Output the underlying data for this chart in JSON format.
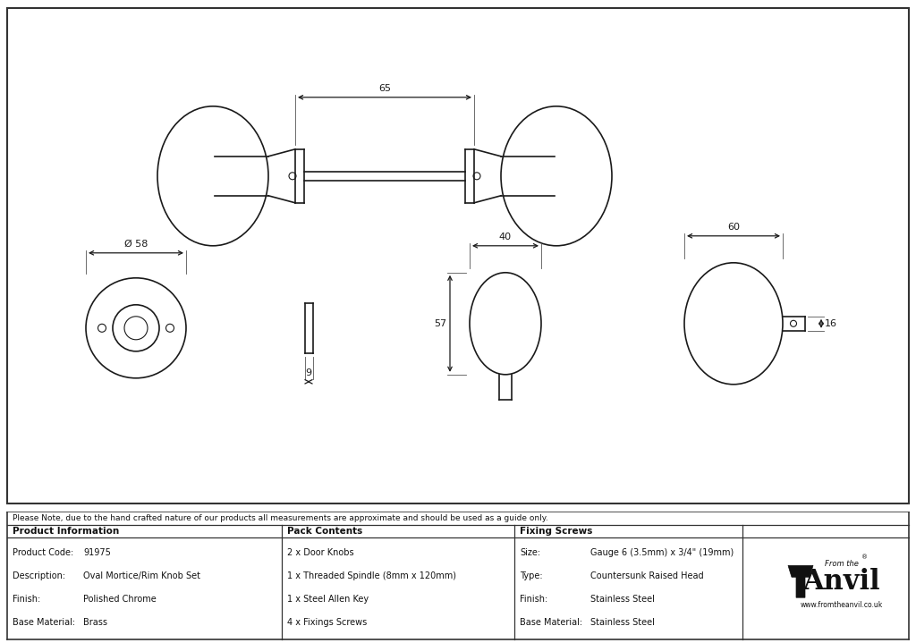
{
  "bg_color": "#ffffff",
  "border_color": "#333333",
  "line_color": "#1a1a1a",
  "line_width": 1.2,
  "note_text": "Please Note, due to the hand crafted nature of our products all measurements are approximate and should be used as a guide only.",
  "table_data": {
    "col1_header": "Product Information",
    "col1_rows": [
      [
        "Product Code:",
        "91975"
      ],
      [
        "Description:",
        "Oval Mortice/Rim Knob Set"
      ],
      [
        "Finish:",
        "Polished Chrome"
      ],
      [
        "Base Material:",
        "Brass"
      ]
    ],
    "col2_header": "Pack Contents",
    "col2_rows": [
      "2 x Door Knobs",
      "1 x Threaded Spindle (8mm x 120mm)",
      "1 x Steel Allen Key",
      "4 x Fixings Screws"
    ],
    "col3_header": "Fixing Screws",
    "col3_rows": [
      [
        "Size:",
        "Gauge 6 (3.5mm) x 3/4\" (19mm)"
      ],
      [
        "Type:",
        "Countersunk Raised Head"
      ],
      [
        "Finish:",
        "Stainless Steel"
      ],
      [
        "Base Material:",
        "Stainless Steel"
      ]
    ]
  }
}
